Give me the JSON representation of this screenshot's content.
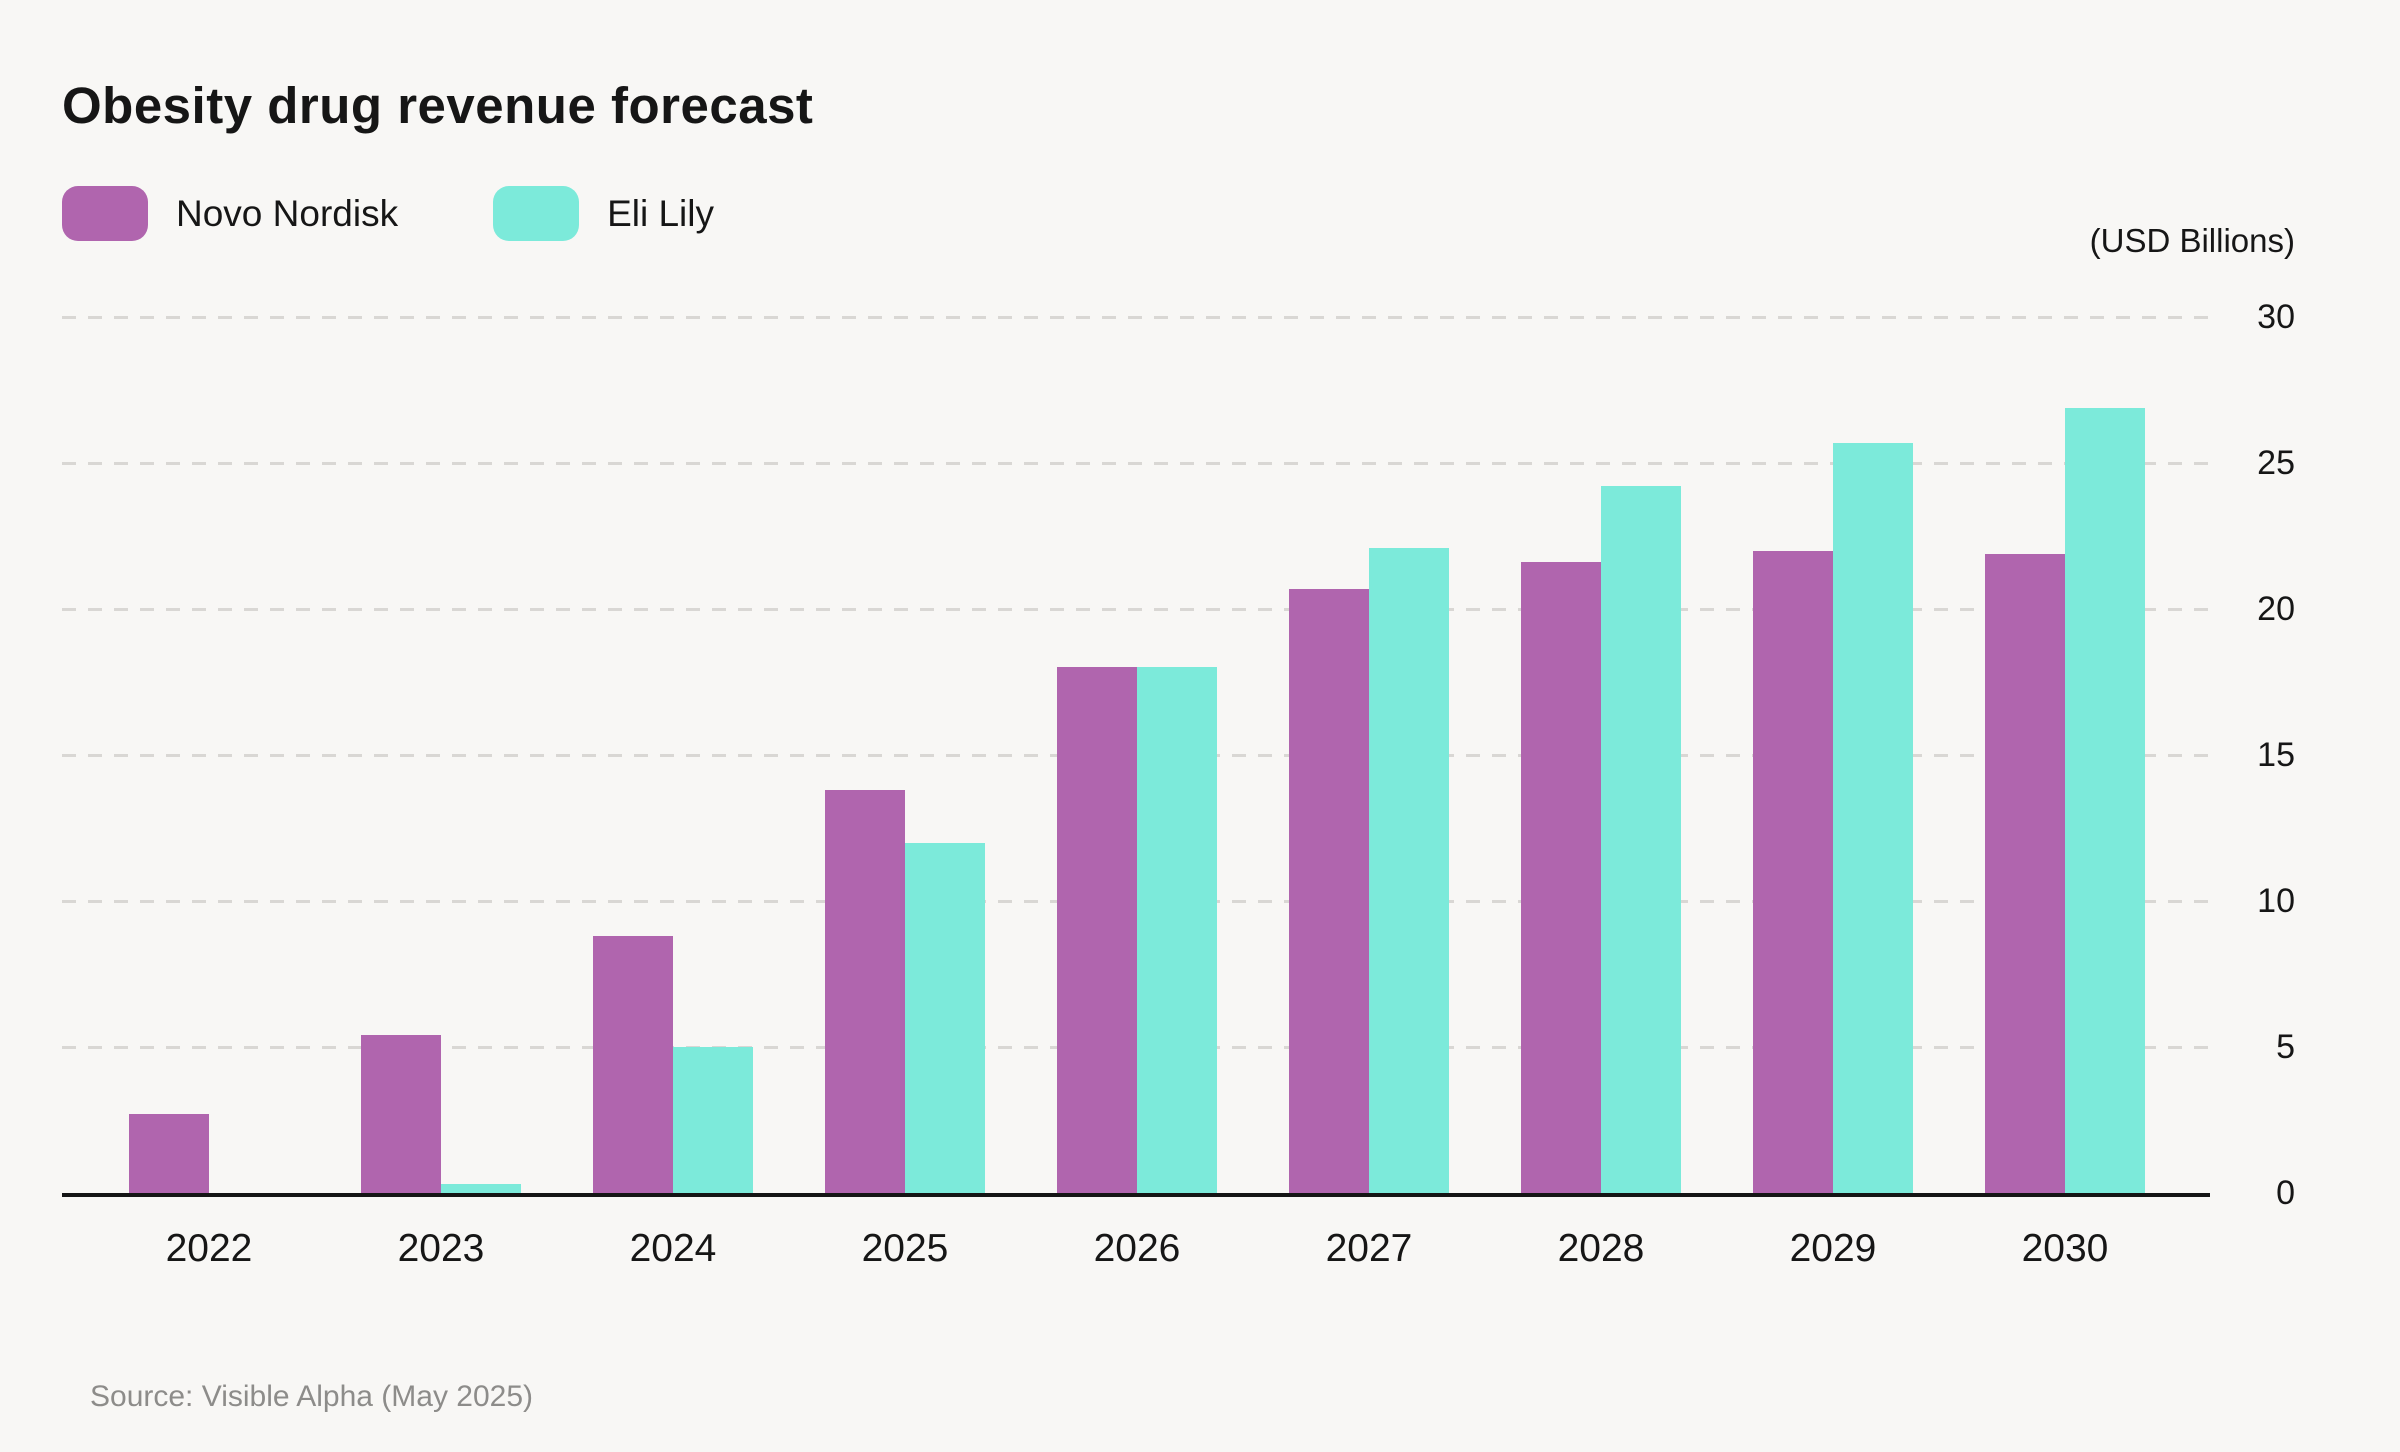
{
  "title": "Obesity drug revenue forecast",
  "source": "Source: Visible Alpha (May 2025)",
  "colors": {
    "background": "#f8f7f5",
    "axis": "#151515",
    "gridline": "#d9d7d4",
    "text": "#161616",
    "muted_text": "#8d8c8a",
    "novo_nordisk": "#b065ae",
    "eli_lily": "#7ceada"
  },
  "y_axis": {
    "unit_label": "(USD Billions)",
    "ticks": [
      0,
      5,
      10,
      15,
      20,
      25,
      30
    ]
  },
  "chart_data": {
    "type": "bar",
    "title": "Obesity drug revenue forecast",
    "categories": [
      "2022",
      "2023",
      "2024",
      "2025",
      "2026",
      "2027",
      "2028",
      "2029",
      "2030"
    ],
    "series": [
      {
        "name": "Novo Nordisk",
        "color": "#b065ae",
        "values": [
          2.7,
          5.4,
          8.8,
          13.8,
          18.0,
          20.7,
          21.6,
          22.0,
          21.9
        ]
      },
      {
        "name": "Eli Lily",
        "color": "#7ceada",
        "values": [
          0,
          0.3,
          5.0,
          12.0,
          18.0,
          22.1,
          24.2,
          25.7,
          26.9
        ]
      }
    ],
    "xlabel": "",
    "ylabel": "(USD Billions)",
    "ylim": [
      0,
      30
    ],
    "grid": "horizontal dashed lines every 5 units",
    "legend_position": "top-left"
  }
}
